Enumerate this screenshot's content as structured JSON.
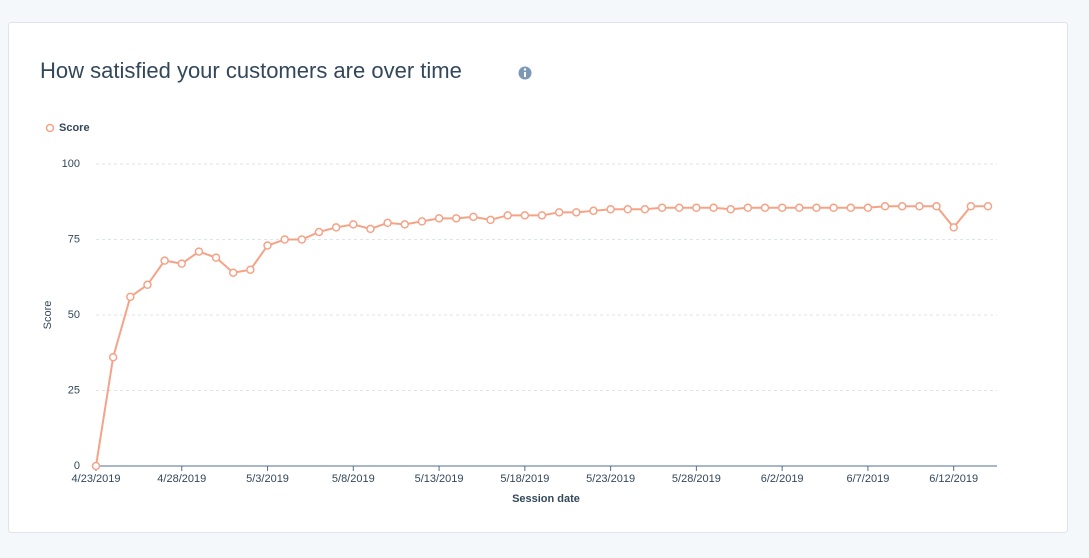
{
  "chart_data": {
    "type": "line",
    "title": "How satisfied your customers are over time",
    "xlabel": "Session date",
    "ylabel": "Score",
    "categories": [
      "4/23/2019",
      "4/24/2019",
      "4/25/2019",
      "4/26/2019",
      "4/27/2019",
      "4/28/2019",
      "4/29/2019",
      "4/30/2019",
      "5/1/2019",
      "5/2/2019",
      "5/3/2019",
      "5/4/2019",
      "5/5/2019",
      "5/6/2019",
      "5/7/2019",
      "5/8/2019",
      "5/9/2019",
      "5/10/2019",
      "5/11/2019",
      "5/12/2019",
      "5/13/2019",
      "5/14/2019",
      "5/15/2019",
      "5/16/2019",
      "5/17/2019",
      "5/18/2019",
      "5/19/2019",
      "5/20/2019",
      "5/21/2019",
      "5/22/2019",
      "5/23/2019",
      "5/24/2019",
      "5/25/2019",
      "5/26/2019",
      "5/27/2019",
      "5/28/2019",
      "5/29/2019",
      "5/30/2019",
      "5/31/2019",
      "6/1/2019",
      "6/2/2019",
      "6/3/2019",
      "6/4/2019",
      "6/5/2019",
      "6/6/2019",
      "6/7/2019",
      "6/8/2019",
      "6/9/2019",
      "6/10/2019",
      "6/11/2019",
      "6/12/2019",
      "6/13/2019",
      "6/14/2019"
    ],
    "series": [
      {
        "name": "Score",
        "color": "#f5a387",
        "values": [
          0,
          36,
          56,
          60,
          68,
          67,
          71,
          69,
          64,
          65,
          73,
          75,
          75,
          77.5,
          79,
          80,
          78.5,
          80.5,
          80,
          81,
          82,
          82,
          82.5,
          81.5,
          83,
          83,
          83,
          84,
          84,
          84.5,
          85,
          85,
          85,
          85.5,
          85.5,
          85.5,
          85.5,
          85,
          85.5,
          85.5,
          85.5,
          85.5,
          85.5,
          85.5,
          85.5,
          85.5,
          86,
          86,
          86,
          86,
          79,
          86,
          86
        ]
      }
    ],
    "xticks": [
      "4/23/2019",
      "4/28/2019",
      "5/3/2019",
      "5/8/2019",
      "5/13/2019",
      "5/18/2019",
      "5/23/2019",
      "5/28/2019",
      "6/2/2019",
      "6/7/2019",
      "6/12/2019"
    ],
    "ylim": [
      0,
      100
    ],
    "yticks": [
      0,
      25,
      50,
      75,
      100
    ],
    "grid": true,
    "legend": "top-left"
  }
}
